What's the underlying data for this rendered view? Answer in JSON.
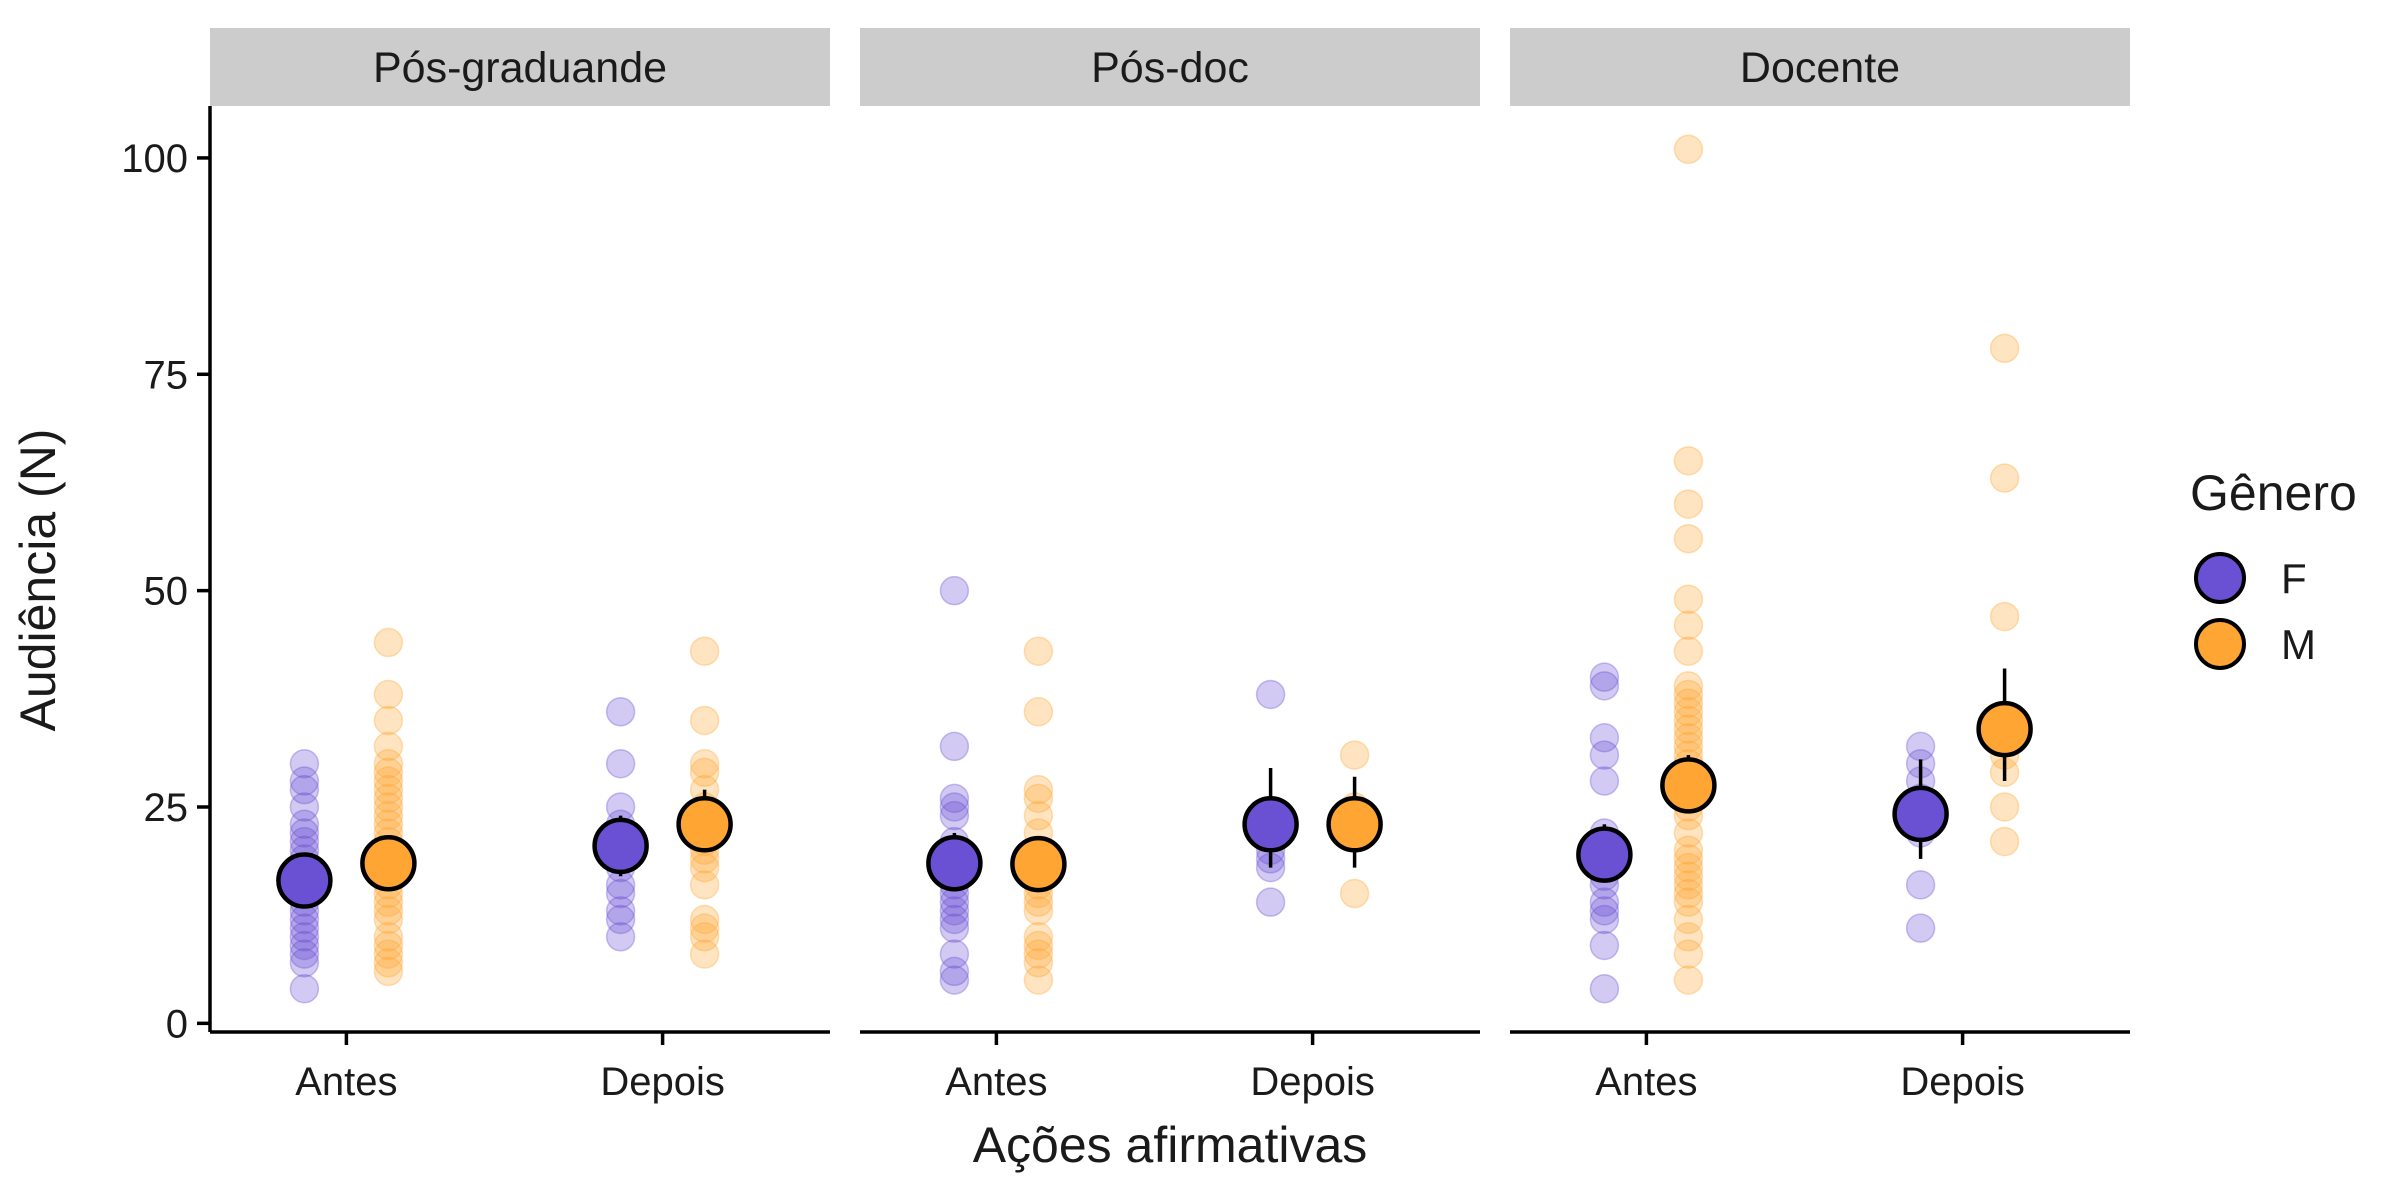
{
  "chart_data": {
    "type": "scatter",
    "title": "",
    "xlabel": "Ações afirmativas",
    "ylabel": "Audiência (N)",
    "ylim": [
      -1,
      106
    ],
    "yticks": [
      0,
      25,
      50,
      75,
      100
    ],
    "categories": [
      "Antes",
      "Depois"
    ],
    "grid": false,
    "legend": {
      "title": "Gênero",
      "position": "right",
      "items": [
        {
          "name": "F",
          "color": "#6a51d4"
        },
        {
          "name": "M",
          "color": "#ffa533"
        }
      ]
    },
    "colors": {
      "F": "#6a51d4",
      "M": "#ffa533",
      "strip_bg": "#cccccc",
      "outline": "#000000"
    },
    "panels": [
      {
        "title": "Pós-graduande",
        "groups": [
          {
            "category": "Antes",
            "gender": "F",
            "mean": 16.5,
            "ci": [
              14.8,
              18.2
            ],
            "points": [
              4,
              7,
              8,
              9,
              10,
              11,
              12,
              13,
              14,
              15,
              16,
              17,
              18,
              19,
              20,
              21,
              22,
              23,
              25,
              27,
              28,
              30
            ]
          },
          {
            "category": "Antes",
            "gender": "M",
            "mean": 18.5,
            "ci": [
              16.8,
              20.2
            ],
            "points": [
              6,
              7,
              8,
              9,
              10,
              12,
              13,
              14,
              15,
              16,
              17,
              18,
              19,
              20,
              21,
              22,
              23,
              24,
              25,
              26,
              27,
              28,
              29,
              30,
              32,
              35,
              38,
              44
            ]
          },
          {
            "category": "Depois",
            "gender": "F",
            "mean": 20.5,
            "ci": [
              17.0,
              24.0
            ],
            "points": [
              10,
              12,
              13,
              15,
              16,
              18,
              19,
              20,
              22,
              23,
              25,
              30,
              36
            ]
          },
          {
            "category": "Depois",
            "gender": "M",
            "mean": 23,
            "ci": [
              20.0,
              27.0
            ],
            "points": [
              8,
              10,
              11,
              12,
              16,
              18,
              19,
              20,
              21,
              22,
              23,
              24,
              25,
              27,
              29,
              30,
              35,
              43
            ]
          }
        ]
      },
      {
        "title": "Pós-doc",
        "groups": [
          {
            "category": "Antes",
            "gender": "F",
            "mean": 18.5,
            "ci": [
              16.0,
              22.0
            ],
            "points": [
              5,
              6,
              8,
              11,
              12,
              13,
              14,
              15,
              16,
              18,
              19,
              20,
              21,
              24,
              25,
              26,
              32,
              50
            ]
          },
          {
            "category": "Antes",
            "gender": "M",
            "mean": 18.4,
            "ci": [
              16.0,
              21.0
            ],
            "points": [
              5,
              7,
              8,
              9,
              10,
              13,
              14,
              15,
              16,
              18,
              20,
              22,
              24,
              26,
              27,
              36,
              43
            ]
          },
          {
            "category": "Depois",
            "gender": "F",
            "mean": 23,
            "ci": [
              18.0,
              29.5
            ],
            "points": [
              14,
              18,
              19,
              20,
              22,
              24,
              38
            ]
          },
          {
            "category": "Depois",
            "gender": "M",
            "mean": 23,
            "ci": [
              18.0,
              28.5
            ],
            "points": [
              15,
              22,
              25,
              31
            ]
          }
        ]
      },
      {
        "title": "Docente",
        "groups": [
          {
            "category": "Antes",
            "gender": "F",
            "mean": 19.5,
            "ci": [
              16.5,
              23.0
            ],
            "points": [
              4,
              9,
              12,
              13,
              14,
              16,
              17,
              18,
              19,
              20,
              21,
              22,
              28,
              31,
              33,
              39,
              40
            ]
          },
          {
            "category": "Antes",
            "gender": "M",
            "mean": 27.5,
            "ci": [
              24.5,
              31.0
            ],
            "points": [
              5,
              8,
              10,
              12,
              14,
              15,
              16,
              17,
              18,
              19,
              20,
              22,
              24,
              25,
              26,
              27,
              28,
              29,
              30,
              31,
              32,
              33,
              34,
              35,
              36,
              37,
              38,
              39,
              43,
              46,
              49,
              56,
              60,
              65,
              101
            ]
          },
          {
            "category": "Depois",
            "gender": "F",
            "mean": 24.2,
            "ci": [
              19.0,
              30.5
            ],
            "points": [
              11,
              16,
              22,
              24,
              26,
              28,
              30,
              32
            ]
          },
          {
            "category": "Depois",
            "gender": "M",
            "mean": 34,
            "ci": [
              28.0,
              41.0
            ],
            "points": [
              21,
              25,
              29,
              31,
              33,
              35,
              47,
              63,
              78
            ]
          }
        ]
      }
    ]
  }
}
